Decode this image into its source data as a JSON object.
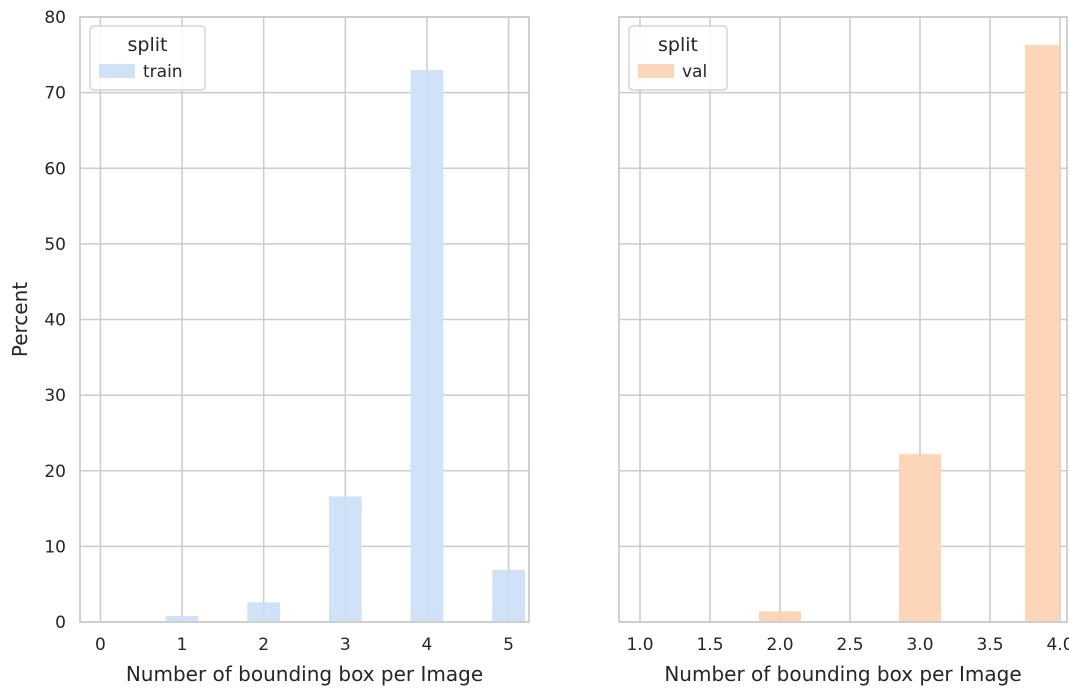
{
  "chart_data": [
    {
      "type": "bar",
      "xlabel": "Number of bounding box per Image",
      "ylabel": "Percent",
      "xlim": [
        -0.25,
        5.25
      ],
      "ylim": [
        0,
        80
      ],
      "xticks": [
        0,
        1,
        2,
        3,
        4,
        5
      ],
      "xtick_labels": [
        "0",
        "1",
        "2",
        "3",
        "4",
        "5"
      ],
      "yticks": [
        0,
        10,
        20,
        30,
        40,
        50,
        60,
        70,
        80
      ],
      "ytick_labels": [
        "0",
        "10",
        "20",
        "30",
        "40",
        "50",
        "60",
        "70",
        "80"
      ],
      "grid": true,
      "legend": {
        "title": "split",
        "position": "top-left",
        "entries": [
          "train"
        ]
      },
      "series": [
        {
          "name": "train",
          "color": "#cfe2f8",
          "bins": [
            {
              "x0": 0.8,
              "x1": 1.2,
              "value": 0.8
            },
            {
              "x0": 1.8,
              "x1": 2.2,
              "value": 2.6
            },
            {
              "x0": 2.8,
              "x1": 3.2,
              "value": 16.6
            },
            {
              "x0": 3.8,
              "x1": 4.2,
              "value": 73.0
            },
            {
              "x0": 4.8,
              "x1": 5.2,
              "value": 6.9
            }
          ]
        }
      ]
    },
    {
      "type": "bar",
      "xlabel": "Number of bounding box per Image",
      "ylabel": "",
      "xlim": [
        0.85,
        4.05
      ],
      "ylim": [
        0,
        80
      ],
      "xticks": [
        1.0,
        1.5,
        2.0,
        2.5,
        3.0,
        3.5,
        4.0
      ],
      "xtick_labels": [
        "1.0",
        "1.5",
        "2.0",
        "2.5",
        "3.0",
        "3.5",
        "4.0"
      ],
      "yticks": [
        0,
        10,
        20,
        30,
        40,
        50,
        60,
        70,
        80
      ],
      "grid": true,
      "legend": {
        "title": "split",
        "position": "top-left",
        "entries": [
          "val"
        ]
      },
      "series": [
        {
          "name": "val",
          "color": "#fdd5b8",
          "bins": [
            {
              "x0": 1.85,
              "x1": 2.15,
              "value": 1.4
            },
            {
              "x0": 2.85,
              "x1": 3.15,
              "value": 22.2
            },
            {
              "x0": 3.75,
              "x1": 4.0,
              "value": 76.3
            }
          ]
        }
      ]
    }
  ]
}
